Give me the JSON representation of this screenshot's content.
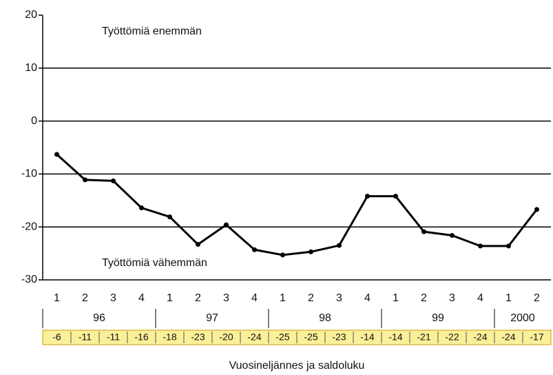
{
  "chart_data": {
    "type": "line",
    "categories": [
      "1",
      "2",
      "3",
      "4",
      "1",
      "2",
      "3",
      "4",
      "1",
      "2",
      "3",
      "4",
      "1",
      "2",
      "3",
      "4",
      "1",
      "2"
    ],
    "groups": [
      "96",
      "97",
      "98",
      "99",
      "2000"
    ],
    "series": [
      {
        "color": "#000000",
        "values": [
          -6.3,
          -11.1,
          -11.3,
          -16.4,
          -18.1,
          -23.3,
          -19.6,
          -24.3,
          -25.3,
          -24.7,
          -23.5,
          -14.2,
          -14.2,
          -20.9,
          -21.6,
          -23.6,
          -23.6,
          -16.7
        ],
        "value_labels": [
          "-6",
          "-11",
          "-11",
          "-16",
          "-18",
          "-23",
          "-20",
          "-24",
          "-25",
          "-25",
          "-23",
          "-14",
          "-14",
          "-21",
          "-22",
          "-24",
          "-24",
          "-17"
        ]
      }
    ],
    "ylim": [
      -30,
      20
    ],
    "yticks": [
      -30,
      -20,
      -10,
      0,
      10,
      20
    ],
    "grid": true,
    "annotations": [
      "Työttömiä enemmän",
      "Työttömiä vähemmän"
    ],
    "xlabel": "Vuosineljännes ja saldoluku",
    "label_fill": "#fbf09a"
  }
}
